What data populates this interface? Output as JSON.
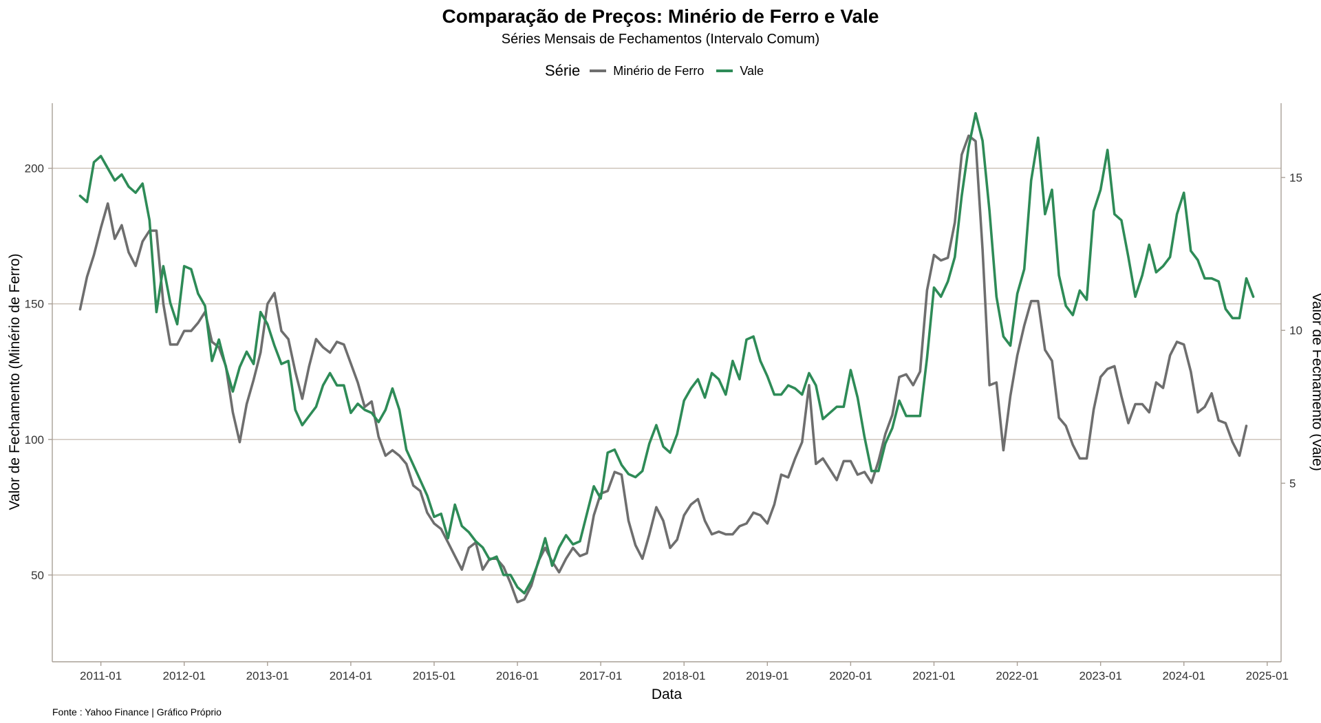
{
  "chart_data": {
    "type": "line",
    "title": "Comparação de Preços: Minério de Ferro e Vale",
    "subtitle": "Séries Mensais de Fechamentos (Intervalo Comum)",
    "xlabel": "Data",
    "ylabel_left": "Valor de Fechamento (Minério de Ferro)",
    "ylabel_right": "Valor de Fechamento (Vale)",
    "caption": "Fonte : Yahoo Finance | Gráfico Próprio",
    "legend_title": "Série",
    "legend_position": "top",
    "grid": "horizontal major",
    "x_ticks": [
      "2011-01",
      "2012-01",
      "2013-01",
      "2014-01",
      "2015-01",
      "2016-01",
      "2017-01",
      "2018-01",
      "2019-01",
      "2020-01",
      "2021-01",
      "2022-01",
      "2023-01",
      "2024-01",
      "2025-01"
    ],
    "x_range": [
      "2010-06",
      "2025-03"
    ],
    "y_left_ticks": [
      50,
      100,
      150,
      200
    ],
    "y_left_range": [
      18,
      224
    ],
    "y_right_ticks": [
      5,
      10,
      15
    ],
    "y_right_range": [
      -0.84,
      17.43
    ],
    "series": [
      {
        "name": "Minério de Ferro",
        "color": "#6e6e6e",
        "axis": "left",
        "start": "2010-10",
        "values": [
          148,
          160,
          168,
          178,
          187,
          174,
          179,
          169,
          164,
          173,
          177,
          177,
          150,
          135,
          135,
          140,
          140,
          143,
          147,
          136,
          134,
          127,
          110,
          99,
          113,
          122,
          132,
          150,
          154,
          140,
          137,
          125,
          115,
          127,
          137,
          134,
          132,
          136,
          135,
          128,
          121,
          112,
          114,
          101,
          94,
          96,
          94,
          91,
          83,
          81,
          73,
          69,
          67,
          62,
          57,
          52,
          60,
          62,
          52,
          56,
          56,
          53,
          47,
          40,
          41,
          46,
          55,
          60,
          55,
          51,
          56,
          60,
          57,
          58,
          72,
          80,
          81,
          88,
          87,
          70,
          61,
          56,
          65,
          75,
          70,
          60,
          63,
          72,
          76,
          78,
          70,
          65,
          66,
          65,
          65,
          68,
          69,
          73,
          72,
          69,
          76,
          87,
          86,
          93,
          99,
          120,
          91,
          93,
          89,
          85,
          92,
          92,
          87,
          88,
          84,
          92,
          102,
          109,
          123,
          124,
          120,
          125,
          155,
          168,
          166,
          167,
          180,
          205,
          212,
          210,
          170,
          120,
          121,
          96,
          116,
          131,
          142,
          151,
          151,
          133,
          129,
          108,
          105,
          98,
          93,
          93,
          111,
          123,
          126,
          127,
          116,
          106,
          113,
          113,
          110,
          121,
          119,
          131,
          136,
          135,
          125,
          110,
          112,
          117,
          107,
          106,
          99,
          94,
          105
        ]
      },
      {
        "name": "Vale",
        "color": "#2e8b57",
        "axis": "right",
        "start": "2010-10",
        "values": [
          14.4,
          14.2,
          15.5,
          15.7,
          15.3,
          14.9,
          15.1,
          14.7,
          14.5,
          14.8,
          13.6,
          10.6,
          12.1,
          10.9,
          10.2,
          12.1,
          12.0,
          11.2,
          10.8,
          9.0,
          9.7,
          8.8,
          8.0,
          8.8,
          9.3,
          8.9,
          10.6,
          10.2,
          9.5,
          8.9,
          9.0,
          7.4,
          6.9,
          7.2,
          7.5,
          8.2,
          8.6,
          8.2,
          8.2,
          7.3,
          7.6,
          7.4,
          7.3,
          7.0,
          7.4,
          8.1,
          7.4,
          6.1,
          5.6,
          5.1,
          4.6,
          3.9,
          4.0,
          3.2,
          4.3,
          3.6,
          3.4,
          3.1,
          2.9,
          2.5,
          2.6,
          2.0,
          2.0,
          1.6,
          1.4,
          1.8,
          2.4,
          3.2,
          2.3,
          2.9,
          3.3,
          3.0,
          3.1,
          4.0,
          4.9,
          4.5,
          6.0,
          6.1,
          5.6,
          5.3,
          5.2,
          5.4,
          6.3,
          6.9,
          6.2,
          6.0,
          6.6,
          7.7,
          8.1,
          8.4,
          7.8,
          8.6,
          8.4,
          7.9,
          9.0,
          8.4,
          9.7,
          9.8,
          9.0,
          8.5,
          7.9,
          7.9,
          8.2,
          8.1,
          7.9,
          8.6,
          8.2,
          7.1,
          7.3,
          7.5,
          7.5,
          8.7,
          7.8,
          6.5,
          5.4,
          5.4,
          6.3,
          6.8,
          7.7,
          7.2,
          7.2,
          7.2,
          9.1,
          11.4,
          11.1,
          11.6,
          12.4,
          14.4,
          16.0,
          17.1,
          16.2,
          13.9,
          11.1,
          9.8,
          9.5,
          11.2,
          12.0,
          14.9,
          16.3,
          13.8,
          14.6,
          11.8,
          10.8,
          10.5,
          11.3,
          11.0,
          13.9,
          14.6,
          15.9,
          13.8,
          13.6,
          12.4,
          11.1,
          11.8,
          12.8,
          11.9,
          12.1,
          12.4,
          13.8,
          14.5,
          12.6,
          12.3,
          11.7,
          11.7,
          11.6,
          10.7,
          10.4,
          10.4,
          11.7,
          11.1
        ]
      }
    ]
  }
}
